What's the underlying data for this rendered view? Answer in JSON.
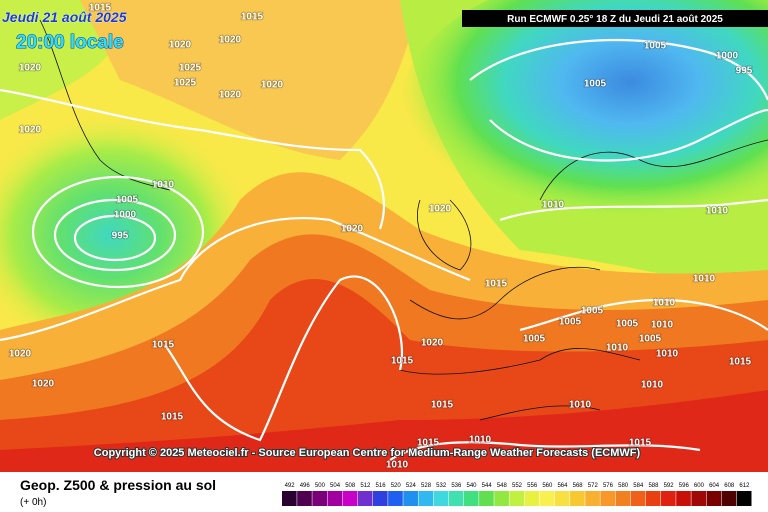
{
  "header": {
    "date": "Jeudi 21 août 2025",
    "time": "20:00 locale",
    "run": "Run ECMWF 0.25° 18 Z du Jeudi 21 août 2025"
  },
  "copyright": "Copyright © 2025 Meteociel.fr - Source European Centre for Medium-Range Weather Forecasts (ECMWF)",
  "footer": {
    "title": "Geop. Z500 & pression au sol",
    "subtitle": "(+ 0h)"
  },
  "legend": {
    "values": [
      492,
      496,
      500,
      504,
      508,
      512,
      516,
      520,
      524,
      528,
      532,
      536,
      540,
      544,
      548,
      552,
      556,
      560,
      564,
      568,
      572,
      576,
      580,
      584,
      588,
      592,
      596,
      600,
      604,
      608,
      612
    ],
    "colors": [
      "#2a0030",
      "#500050",
      "#7a007a",
      "#a000a0",
      "#c800c8",
      "#7030d0",
      "#3040e0",
      "#2060f0",
      "#2090f0",
      "#30b8f0",
      "#40d8e0",
      "#40e0b0",
      "#40e080",
      "#60e050",
      "#90e840",
      "#c0f040",
      "#e8f040",
      "#f8f050",
      "#f8e040",
      "#f8c830",
      "#f8b030",
      "#f89828",
      "#f08020",
      "#f06018",
      "#e84010",
      "#e02010",
      "#c81008",
      "#a00808",
      "#780000",
      "#500000",
      "#000000"
    ]
  },
  "isobar_labels": [
    1015,
    1015,
    1020,
    1020,
    1020,
    1025,
    1025,
    1020,
    1020,
    1020,
    1010,
    1005,
    1000,
    995,
    1020,
    1020,
    1015,
    1015,
    1020,
    1020,
    1015,
    1015,
    1020,
    1015,
    1015,
    1010,
    1010,
    1005,
    1005,
    1005,
    1005,
    1010,
    1005,
    1010,
    1010,
    1010,
    1010,
    1005,
    1005,
    1000,
    995,
    1010,
    1010,
    1010,
    1010,
    1015,
    1015
  ]
}
